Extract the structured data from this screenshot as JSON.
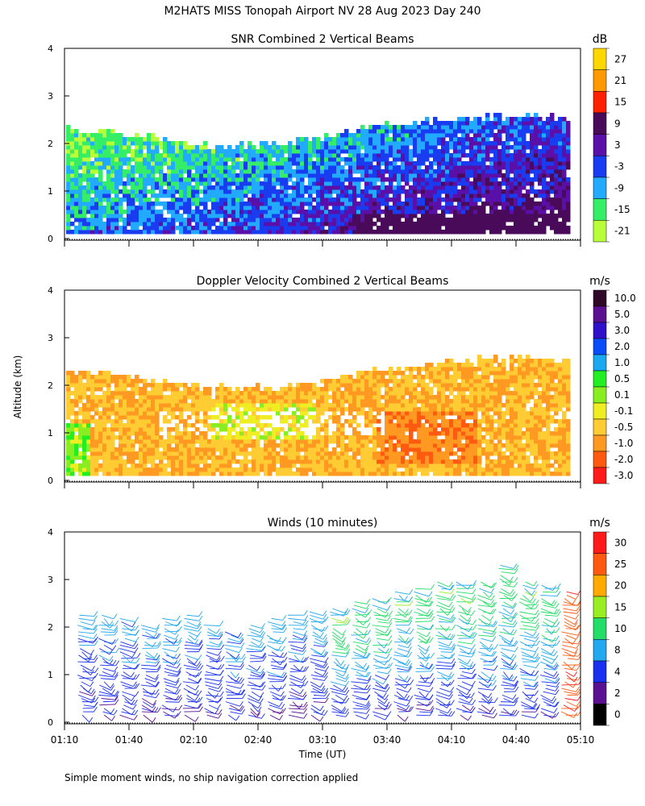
{
  "title": "M2HATS MISS Tonopah Airport NV  28 Aug 2023 Day 240",
  "ylabel": "Altitude (km)",
  "xlabel": "Time (UT)",
  "footnote": "Simple moment winds, no ship navigation correction applied",
  "chart_data": [
    {
      "type": "heatmap",
      "title": "SNR Combined 2 Vertical Beams",
      "unit": "dB",
      "x_range": [
        "01:10",
        "05:10"
      ],
      "ylim": [
        0,
        4
      ],
      "yticks": [
        "0",
        "1",
        "2",
        "3",
        "4"
      ],
      "xticks": [
        "01:10",
        "01:40",
        "02:10",
        "02:40",
        "03:10",
        "03:40",
        "04:10",
        "04:40",
        "05:10"
      ],
      "colorbar": {
        "labels": [
          "27",
          "21",
          "15",
          "9",
          "3",
          "-3",
          "-9",
          "-15",
          "-21"
        ],
        "colors": [
          "#ffd700",
          "#ff9900",
          "#ff2200",
          "#4a0a5a",
          "#5a10a8",
          "#1a3cf0",
          "#22aaff",
          "#33ee66",
          "#b8ff3a"
        ]
      },
      "echo_top_km": [
        {
          "t": "01:10",
          "top": 2.3
        },
        {
          "t": "01:40",
          "top": 2.15
        },
        {
          "t": "02:10",
          "top": 1.95
        },
        {
          "t": "02:40",
          "top": 1.9
        },
        {
          "t": "03:10",
          "top": 2.1
        },
        {
          "t": "03:40",
          "top": 2.35
        },
        {
          "t": "04:10",
          "top": 2.5
        },
        {
          "t": "04:40",
          "top": 2.55
        },
        {
          "t": "05:05",
          "top": 2.5
        }
      ]
    },
    {
      "type": "heatmap",
      "title": "Doppler Velocity Combined 2 Vertical Beams",
      "unit": "m/s",
      "x_range": [
        "01:10",
        "05:10"
      ],
      "ylim": [
        0,
        4
      ],
      "yticks": [
        "0",
        "1",
        "2",
        "3",
        "4"
      ],
      "xticks": [
        "01:10",
        "01:40",
        "02:10",
        "02:40",
        "03:10",
        "03:40",
        "04:10",
        "04:40",
        "05:10"
      ],
      "colorbar": {
        "labels": [
          "10.0",
          "5.0",
          "3.0",
          "2.0",
          "1.0",
          "0.5",
          "0.1",
          "-0.1",
          "-0.5",
          "-1.0",
          "-2.0",
          "-3.0"
        ],
        "colors": [
          "#300828",
          "#5a1090",
          "#3010c8",
          "#0a4cf8",
          "#1aa8f0",
          "#22ee22",
          "#88ee22",
          "#eeee22",
          "#ffcc33",
          "#ff9922",
          "#ff5a10",
          "#ff1a1a"
        ]
      },
      "echo_top_km": [
        {
          "t": "01:10",
          "top": 2.25
        },
        {
          "t": "01:40",
          "top": 2.15
        },
        {
          "t": "02:10",
          "top": 1.95
        },
        {
          "t": "02:40",
          "top": 1.9
        },
        {
          "t": "03:10",
          "top": 2.05
        },
        {
          "t": "03:40",
          "top": 2.3
        },
        {
          "t": "04:10",
          "top": 2.45
        },
        {
          "t": "04:40",
          "top": 2.55
        },
        {
          "t": "05:05",
          "top": 2.5
        }
      ]
    },
    {
      "type": "wind-barbs",
      "title": "Winds (10 minutes)",
      "unit": "m/s",
      "x_range": [
        "01:10",
        "05:10"
      ],
      "ylim": [
        0,
        4
      ],
      "yticks": [
        "0",
        "1",
        "2",
        "3",
        "4"
      ],
      "xticks": [
        "01:10",
        "01:40",
        "02:10",
        "02:40",
        "03:10",
        "03:40",
        "04:10",
        "04:40",
        "05:10"
      ],
      "colorbar": {
        "labels": [
          "30",
          "25",
          "20",
          "15",
          "10",
          "8",
          "4",
          "2",
          "0"
        ],
        "colors": [
          "#ff1a1a",
          "#ff5a10",
          "#ffaa00",
          "#99ee22",
          "#22dd66",
          "#22a8ee",
          "#1a30f0",
          "#5a1090",
          "#000000"
        ]
      },
      "profile_count": 24,
      "profile_tops_km": [
        2.3,
        2.3,
        2.25,
        2.1,
        2.2,
        2.3,
        2.1,
        1.95,
        2.1,
        2.2,
        2.3,
        2.35,
        2.4,
        2.55,
        2.6,
        2.8,
        2.85,
        3.0,
        2.95,
        2.95,
        3.3,
        3.0,
        2.9,
        2.8
      ]
    }
  ]
}
